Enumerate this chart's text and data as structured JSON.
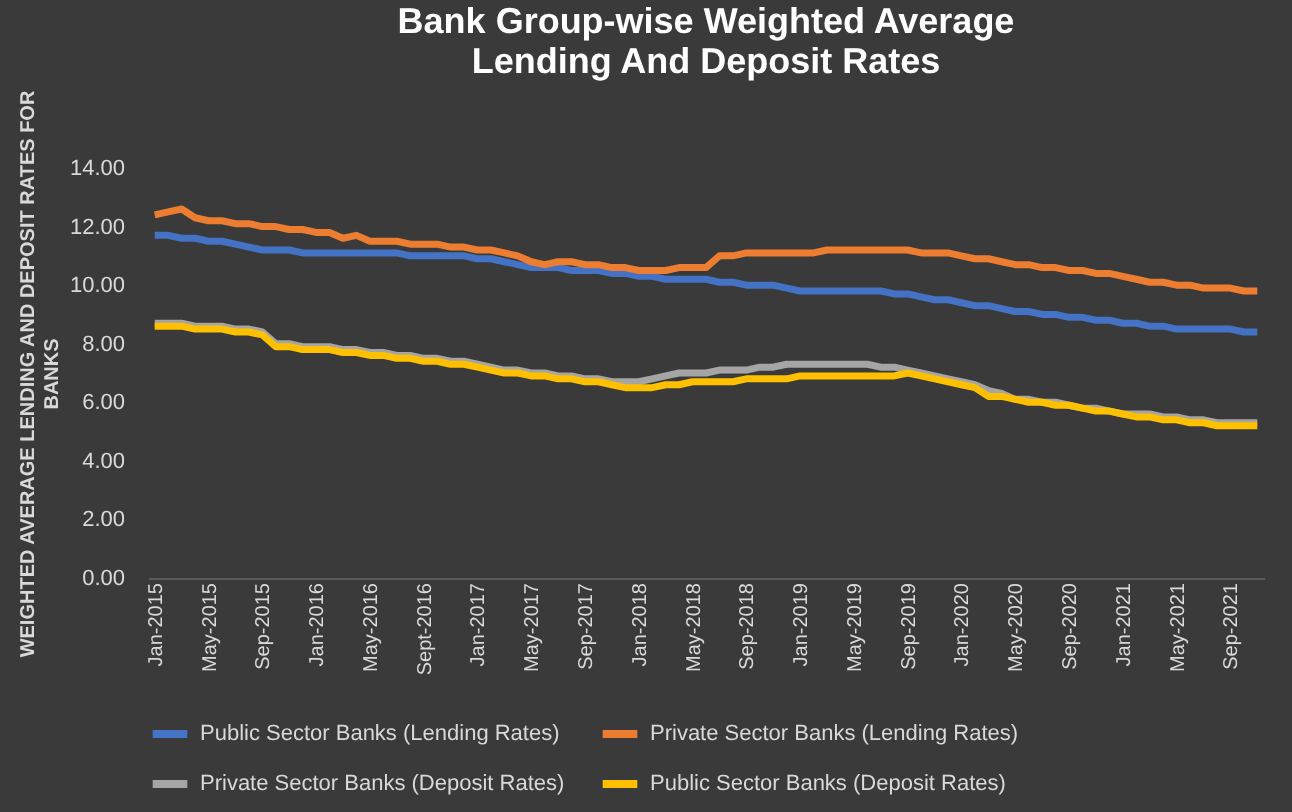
{
  "chart_data": {
    "type": "line",
    "title": "Bank Group-wise Weighted Average Lending And Deposit Rates",
    "ylabel": "WEIGHTED AVERAGE LENDING AND DEPOSIT RATES FOR BANKS",
    "categories": [
      "Jan-2015",
      null,
      null,
      null,
      "May-2015",
      null,
      null,
      null,
      "Sep-2015",
      null,
      null,
      null,
      "Jan-2016",
      null,
      null,
      null,
      "May-2016",
      null,
      null,
      null,
      "Sept-2016",
      null,
      null,
      null,
      "Jan-2017",
      null,
      null,
      null,
      "May-2017",
      null,
      null,
      null,
      "Sep-2017",
      null,
      null,
      null,
      "Jan-2018",
      null,
      null,
      null,
      "May-2018",
      null,
      null,
      null,
      "Sep-2018",
      null,
      null,
      null,
      "Jan-2019",
      null,
      null,
      null,
      "May-2019",
      null,
      null,
      null,
      "Sep-2019",
      null,
      null,
      null,
      "Jan-2020",
      null,
      null,
      null,
      "May-2020",
      null,
      null,
      null,
      "Sep-2020",
      null,
      null,
      null,
      "Jan-2021",
      null,
      null,
      null,
      "May-2021",
      null,
      null,
      null,
      "Sep-2021",
      null,
      null
    ],
    "series": [
      {
        "name": "Public Sector Banks (Lending Rates)",
        "color": "#4472c4",
        "values": [
          11.7,
          11.7,
          11.6,
          11.6,
          11.5,
          11.5,
          11.4,
          11.3,
          11.2,
          11.2,
          11.2,
          11.1,
          11.1,
          11.1,
          11.1,
          11.1,
          11.1,
          11.1,
          11.1,
          11.0,
          11.0,
          11.0,
          11.0,
          11.0,
          10.9,
          10.9,
          10.8,
          10.7,
          10.6,
          10.6,
          10.6,
          10.5,
          10.5,
          10.5,
          10.4,
          10.4,
          10.3,
          10.3,
          10.2,
          10.2,
          10.2,
          10.2,
          10.1,
          10.1,
          10.0,
          10.0,
          10.0,
          9.9,
          9.8,
          9.8,
          9.8,
          9.8,
          9.8,
          9.8,
          9.8,
          9.7,
          9.7,
          9.6,
          9.5,
          9.5,
          9.4,
          9.3,
          9.3,
          9.2,
          9.1,
          9.1,
          9.0,
          9.0,
          8.9,
          8.9,
          8.8,
          8.8,
          8.7,
          8.7,
          8.6,
          8.6,
          8.5,
          8.5,
          8.5,
          8.5,
          8.5,
          8.4,
          8.4
        ]
      },
      {
        "name": "Private Sector Banks (Lending Rates)",
        "color": "#ed7d31",
        "values": [
          12.4,
          12.5,
          12.6,
          12.3,
          12.2,
          12.2,
          12.1,
          12.1,
          12.0,
          12.0,
          11.9,
          11.9,
          11.8,
          11.8,
          11.6,
          11.7,
          11.5,
          11.5,
          11.5,
          11.4,
          11.4,
          11.4,
          11.3,
          11.3,
          11.2,
          11.2,
          11.1,
          11.0,
          10.8,
          10.7,
          10.8,
          10.8,
          10.7,
          10.7,
          10.6,
          10.6,
          10.5,
          10.5,
          10.5,
          10.6,
          10.6,
          10.6,
          11.0,
          11.0,
          11.1,
          11.1,
          11.1,
          11.1,
          11.1,
          11.1,
          11.2,
          11.2,
          11.2,
          11.2,
          11.2,
          11.2,
          11.2,
          11.1,
          11.1,
          11.1,
          11.0,
          10.9,
          10.9,
          10.8,
          10.7,
          10.7,
          10.6,
          10.6,
          10.5,
          10.5,
          10.4,
          10.4,
          10.3,
          10.2,
          10.1,
          10.1,
          10.0,
          10.0,
          9.9,
          9.9,
          9.9,
          9.8,
          9.8
        ]
      },
      {
        "name": "Private Sector Banks (Deposit Rates)",
        "color": "#a5a5a5",
        "values": [
          8.7,
          8.7,
          8.7,
          8.6,
          8.6,
          8.6,
          8.5,
          8.5,
          8.4,
          8.0,
          8.0,
          7.9,
          7.9,
          7.9,
          7.8,
          7.8,
          7.7,
          7.7,
          7.6,
          7.6,
          7.5,
          7.5,
          7.4,
          7.4,
          7.3,
          7.2,
          7.1,
          7.1,
          7.0,
          7.0,
          6.9,
          6.9,
          6.8,
          6.8,
          6.7,
          6.7,
          6.7,
          6.8,
          6.9,
          7.0,
          7.0,
          7.0,
          7.1,
          7.1,
          7.1,
          7.2,
          7.2,
          7.3,
          7.3,
          7.3,
          7.3,
          7.3,
          7.3,
          7.3,
          7.2,
          7.2,
          7.1,
          7.0,
          6.9,
          6.8,
          6.7,
          6.6,
          6.4,
          6.3,
          6.1,
          6.1,
          6.0,
          6.0,
          5.9,
          5.8,
          5.8,
          5.7,
          5.6,
          5.6,
          5.6,
          5.5,
          5.5,
          5.4,
          5.4,
          5.3,
          5.3,
          5.3,
          5.3
        ]
      },
      {
        "name": "Public Sector Banks (Deposit Rates)",
        "color": "#ffc000",
        "values": [
          8.6,
          8.6,
          8.6,
          8.5,
          8.5,
          8.5,
          8.4,
          8.4,
          8.3,
          7.9,
          7.9,
          7.8,
          7.8,
          7.8,
          7.7,
          7.7,
          7.6,
          7.6,
          7.5,
          7.5,
          7.4,
          7.4,
          7.3,
          7.3,
          7.2,
          7.1,
          7.0,
          7.0,
          6.9,
          6.9,
          6.8,
          6.8,
          6.7,
          6.7,
          6.6,
          6.5,
          6.5,
          6.5,
          6.6,
          6.6,
          6.7,
          6.7,
          6.7,
          6.7,
          6.8,
          6.8,
          6.8,
          6.8,
          6.9,
          6.9,
          6.9,
          6.9,
          6.9,
          6.9,
          6.9,
          6.9,
          7.0,
          6.9,
          6.8,
          6.7,
          6.6,
          6.5,
          6.2,
          6.2,
          6.1,
          6.0,
          6.0,
          5.9,
          5.9,
          5.8,
          5.7,
          5.7,
          5.6,
          5.5,
          5.5,
          5.4,
          5.4,
          5.3,
          5.3,
          5.2,
          5.2,
          5.2,
          5.2
        ]
      }
    ],
    "ylim": [
      0,
      14
    ],
    "yticks": [
      {
        "value": 0,
        "label": "0.00"
      },
      {
        "value": 2,
        "label": "2.00"
      },
      {
        "value": 4,
        "label": "4.00"
      },
      {
        "value": 6,
        "label": "6.00"
      },
      {
        "value": 8,
        "label": "8.00"
      },
      {
        "value": 10,
        "label": "10.00"
      },
      {
        "value": 12,
        "label": "12.00"
      },
      {
        "value": 14,
        "label": "14.00"
      }
    ],
    "grid": false,
    "legend": "bottom"
  }
}
